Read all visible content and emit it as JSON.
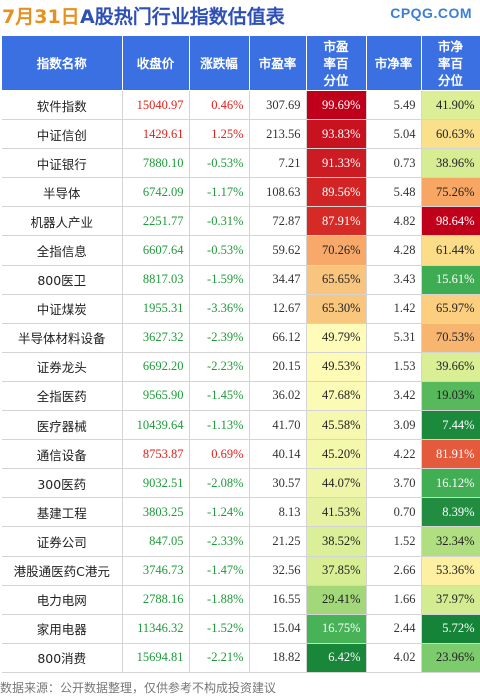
{
  "header": {
    "date": "7月31日",
    "title": "A股热门行业指数估值表",
    "brand": "CPQG.COM"
  },
  "columns": [
    "指数名称",
    "收盘价",
    "涨跌幅",
    "市盈率",
    "市盈率百分位",
    "市净率",
    "市净率百分位"
  ],
  "rows": [
    {
      "name": "软件指数",
      "close": "15040.97",
      "chg": "0.46%",
      "pe": "307.69",
      "pe_pct": "99.69%",
      "pb": "5.49",
      "pb_pct": "41.90%",
      "pe_bg": "#c0001a",
      "pb_bg": "#dcef97"
    },
    {
      "name": "中证信创",
      "close": "1429.61",
      "chg": "1.25%",
      "pe": "213.56",
      "pe_pct": "93.83%",
      "pb": "5.04",
      "pb_pct": "60.63%",
      "pe_bg": "#c8121f",
      "pb_bg": "#fbe08c"
    },
    {
      "name": "中证银行",
      "close": "7880.10",
      "chg": "-0.53%",
      "pe": "7.21",
      "pe_pct": "91.33%",
      "pb": "0.73",
      "pb_pct": "38.96%",
      "pe_bg": "#cc1b22",
      "pb_bg": "#d7ed93"
    },
    {
      "name": "半导体",
      "close": "6742.09",
      "chg": "-1.17%",
      "pe": "108.63",
      "pe_pct": "89.56%",
      "pb": "5.48",
      "pb_pct": "75.26%",
      "pe_bg": "#d22425",
      "pb_bg": "#f7a763"
    },
    {
      "name": "机器人产业",
      "close": "2251.77",
      "chg": "-0.31%",
      "pe": "72.87",
      "pe_pct": "87.91%",
      "pb": "4.82",
      "pb_pct": "98.64%",
      "pe_bg": "#d62a27",
      "pb_bg": "#c0001a"
    },
    {
      "name": "全指信息",
      "close": "6607.64",
      "chg": "-0.53%",
      "pe": "59.62",
      "pe_pct": "70.26%",
      "pb": "4.28",
      "pb_pct": "61.44%",
      "pe_bg": "#f8a96a",
      "pb_bg": "#fbdc88"
    },
    {
      "name": "800医卫",
      "close": "8817.03",
      "chg": "-1.59%",
      "pe": "34.47",
      "pe_pct": "65.65%",
      "pb": "3.43",
      "pb_pct": "15.61%",
      "pe_bg": "#f9c47d",
      "pb_bg": "#3eac53"
    },
    {
      "name": "中证煤炭",
      "close": "1955.31",
      "chg": "-3.36%",
      "pe": "12.67",
      "pe_pct": "65.30%",
      "pb": "1.42",
      "pb_pct": "65.97%",
      "pe_bg": "#f9c67e",
      "pb_bg": "#fbcf7f"
    },
    {
      "name": "半导体材料设备",
      "close": "3627.32",
      "chg": "-2.39%",
      "pe": "66.12",
      "pe_pct": "49.79%",
      "pb": "5.31",
      "pb_pct": "70.53%",
      "pe_bg": "#fefcb8",
      "pb_bg": "#f8b56f"
    },
    {
      "name": "证券龙头",
      "close": "6692.20",
      "chg": "-2.23%",
      "pe": "20.15",
      "pe_pct": "49.53%",
      "pb": "1.53",
      "pb_pct": "39.66%",
      "pe_bg": "#fefbb7",
      "pb_bg": "#d9ee95"
    },
    {
      "name": "全指医药",
      "close": "9565.90",
      "chg": "-1.45%",
      "pe": "36.02",
      "pe_pct": "47.68%",
      "pb": "3.42",
      "pb_pct": "19.03%",
      "pe_bg": "#fbfbb5",
      "pb_bg": "#58b85c"
    },
    {
      "name": "医疗器械",
      "close": "10439.64",
      "chg": "-1.13%",
      "pe": "41.70",
      "pe_pct": "45.58%",
      "pb": "3.09",
      "pb_pct": "7.44%",
      "pe_bg": "#f5f8ae",
      "pb_bg": "#1b8a3d"
    },
    {
      "name": "通信设备",
      "close": "8753.87",
      "chg": "0.69%",
      "pe": "40.14",
      "pe_pct": "45.20%",
      "pb": "4.22",
      "pb_pct": "81.91%",
      "pe_bg": "#f4f8ad",
      "pb_bg": "#e45a3c"
    },
    {
      "name": "300医药",
      "close": "9032.51",
      "chg": "-2.08%",
      "pe": "30.57",
      "pe_pct": "44.07%",
      "pb": "3.70",
      "pb_pct": "16.12%",
      "pe_bg": "#f0f6a9",
      "pb_bg": "#42ae54"
    },
    {
      "name": "基建工程",
      "close": "3803.25",
      "chg": "-1.24%",
      "pe": "8.13",
      "pe_pct": "41.53%",
      "pb": "0.70",
      "pb_pct": "8.39%",
      "pe_bg": "#e6f2a1",
      "pb_bg": "#228d40"
    },
    {
      "name": "证券公司",
      "close": "847.05",
      "chg": "-2.33%",
      "pe": "21.25",
      "pe_pct": "38.52%",
      "pb": "1.52",
      "pb_pct": "32.34%",
      "pe_bg": "#dbef98",
      "pb_bg": "#b1de80"
    },
    {
      "name": "港股通医药C港元",
      "close": "3746.73",
      "chg": "-1.47%",
      "pe": "32.56",
      "pe_pct": "37.85%",
      "pb": "2.66",
      "pb_pct": "53.36%",
      "pe_bg": "#d7ee95",
      "pb_bg": "#fef0a2"
    },
    {
      "name": "电力电网",
      "close": "2788.16",
      "chg": "-1.88%",
      "pe": "16.55",
      "pe_pct": "29.41%",
      "pb": "1.66",
      "pb_pct": "37.97%",
      "pe_bg": "#a2d879",
      "pb_bg": "#d3ec92"
    },
    {
      "name": "家用电器",
      "close": "11346.32",
      "chg": "-1.52%",
      "pe": "15.04",
      "pe_pct": "16.75%",
      "pb": "2.44",
      "pb_pct": "5.72%",
      "pe_bg": "#48b257",
      "pb_bg": "#168438"
    },
    {
      "name": "800消费",
      "close": "15694.81",
      "chg": "-2.21%",
      "pe": "18.82",
      "pe_pct": "6.42%",
      "pb": "4.02",
      "pb_pct": "23.96%",
      "pe_bg": "#188739",
      "pb_bg": "#7ccb6c"
    }
  ],
  "footer": "数据来源：公开数据整理，仅供参考不构成投资建议"
}
